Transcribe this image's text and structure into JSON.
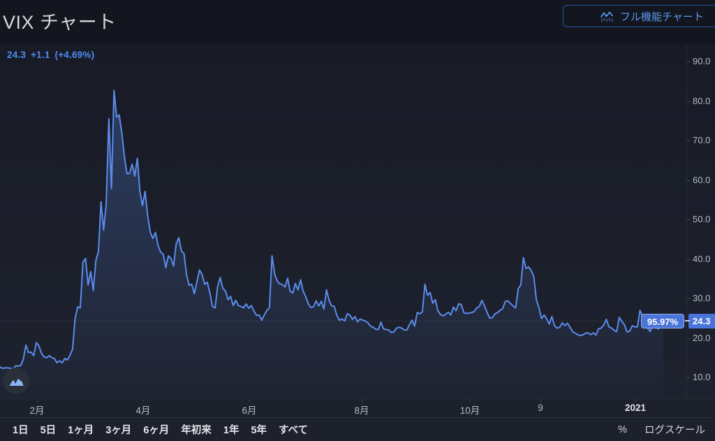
{
  "header": {
    "title": "VIX チャート",
    "full_chart_button": "フル機能チャート"
  },
  "quote": {
    "last": "24.3",
    "change": "+1.1",
    "change_pct": "(+4.69%)"
  },
  "chart_data": {
    "type": "area",
    "symbol": "VIX",
    "title": "VIX チャート",
    "legend_position": "none",
    "grid": false,
    "line_color": "#5b8cec",
    "fill_color_top": "rgba(91,140,236,0.30)",
    "fill_color_bottom": "rgba(91,140,236,0.015)",
    "accent_blue": "#4c8bf0",
    "label_bg": "#4a74da",
    "ylim": [
      5,
      95
    ],
    "y_axis": {
      "max": 90,
      "min": 10,
      "step": 10,
      "tick_labels": [
        "90.0",
        "80.0",
        "70.0",
        "60.0",
        "50.0",
        "40.0",
        "30.0",
        "20.0",
        "10.0"
      ],
      "tick_values": [
        90,
        80,
        70,
        60,
        50,
        40,
        30,
        20,
        10
      ]
    },
    "x_ticks": [
      {
        "label": "2月",
        "x": 53
      },
      {
        "label": "4月",
        "x": 205
      },
      {
        "label": "6月",
        "x": 357
      },
      {
        "label": "8月",
        "x": 518
      },
      {
        "label": "10月",
        "x": 673
      },
      {
        "label": "9",
        "x": 774
      },
      {
        "label": "2021",
        "x": 910,
        "year": true
      }
    ],
    "current_value": 24.3,
    "current_label": "24.3",
    "period_change_pct": "95.97%",
    "high_value": 82.7,
    "values": [
      12.6,
      12.3,
      12.4,
      12.4,
      12.3,
      12.1,
      12.9,
      12.9,
      13.0,
      14.6,
      18.2,
      16.3,
      16.4,
      15.5,
      18.8,
      18.0,
      16.1,
      15.2,
      15.0,
      15.5,
      15.0,
      14.8,
      13.7,
      14.2,
      13.7,
      14.8,
      14.4,
      15.6,
      17.1,
      25.0,
      27.9,
      27.6,
      39.2,
      40.1,
      33.4,
      36.8,
      32.0,
      39.6,
      41.9,
      54.5,
      47.3,
      53.9,
      75.5,
      57.8,
      82.7,
      75.9,
      76.5,
      72.0,
      66.0,
      61.6,
      61.7,
      64.0,
      61.0,
      65.5,
      57.1,
      53.5,
      57.1,
      50.9,
      46.8,
      45.2,
      46.7,
      43.4,
      41.7,
      41.2,
      37.8,
      40.8,
      40.1,
      38.2,
      43.8,
      45.4,
      42.0,
      41.4,
      36.0,
      33.3,
      33.6,
      31.2,
      34.2,
      37.2,
      36.0,
      33.6,
      34.1,
      31.4,
      28.0,
      27.6,
      33.0,
      35.3,
      32.6,
      31.9,
      29.7,
      30.5,
      28.2,
      29.5,
      28.2,
      28.0,
      27.6,
      28.6,
      27.5,
      28.2,
      26.8,
      25.7,
      25.8,
      24.5,
      25.8,
      27.0,
      27.6,
      40.8,
      36.1,
      34.4,
      33.7,
      33.5,
      32.9,
      35.1,
      31.8,
      31.4,
      33.8,
      32.2,
      34.7,
      31.8,
      30.4,
      28.6,
      27.7,
      27.9,
      29.4,
      28.1,
      29.3,
      27.3,
      32.2,
      29.5,
      28.1,
      28.0,
      25.7,
      24.5,
      24.8,
      24.3,
      26.1,
      25.8,
      24.7,
      25.4,
      24.1,
      24.8,
      24.5,
      24.3,
      23.8,
      23.0,
      22.7,
      22.2,
      22.1,
      24.0,
      22.3,
      22.1,
      22.0,
      21.4,
      21.5,
      22.5,
      22.7,
      22.5,
      22.0,
      22.0,
      23.3,
      24.5,
      23.0,
      26.4,
      26.1,
      26.6,
      33.6,
      30.8,
      31.5,
      28.8,
      29.7,
      26.9,
      25.9,
      25.6,
      26.0,
      26.5,
      25.8,
      27.8,
      26.9,
      28.6,
      28.5,
      26.4,
      26.2,
      26.3,
      26.4,
      26.7,
      27.6,
      28.0,
      29.5,
      28.1,
      26.4,
      25.0,
      25.1,
      26.1,
      26.4,
      27.0,
      27.4,
      29.2,
      29.4,
      28.7,
      28.1,
      27.6,
      32.5,
      33.4,
      40.3,
      37.6,
      38.0,
      37.1,
      35.6,
      29.6,
      27.6,
      24.9,
      25.8,
      24.8,
      23.5,
      25.4,
      23.1,
      22.5,
      22.7,
      23.8,
      23.1,
      23.7,
      22.7,
      21.6,
      21.2,
      20.8,
      20.6,
      20.8,
      21.2,
      21.3,
      20.8,
      21.3,
      20.7,
      22.3,
      22.5,
      23.3,
      24.7,
      22.8,
      22.5,
      21.9,
      21.6,
      25.2,
      24.2,
      23.3,
      21.5,
      21.7,
      23.1,
      22.8,
      22.8,
      27.0,
      25.3,
      25.1,
      22.4,
      21.6,
      24.1,
      23.3,
      22.2,
      23.3,
      24.3
    ]
  },
  "toolbar": {
    "ranges": [
      "1日",
      "5日",
      "1ヶ月",
      "3ヶ月",
      "6ヶ月",
      "年初来",
      "1年",
      "5年",
      "すべて"
    ],
    "percent_label": "%",
    "log_scale_label": "ログスケール"
  }
}
